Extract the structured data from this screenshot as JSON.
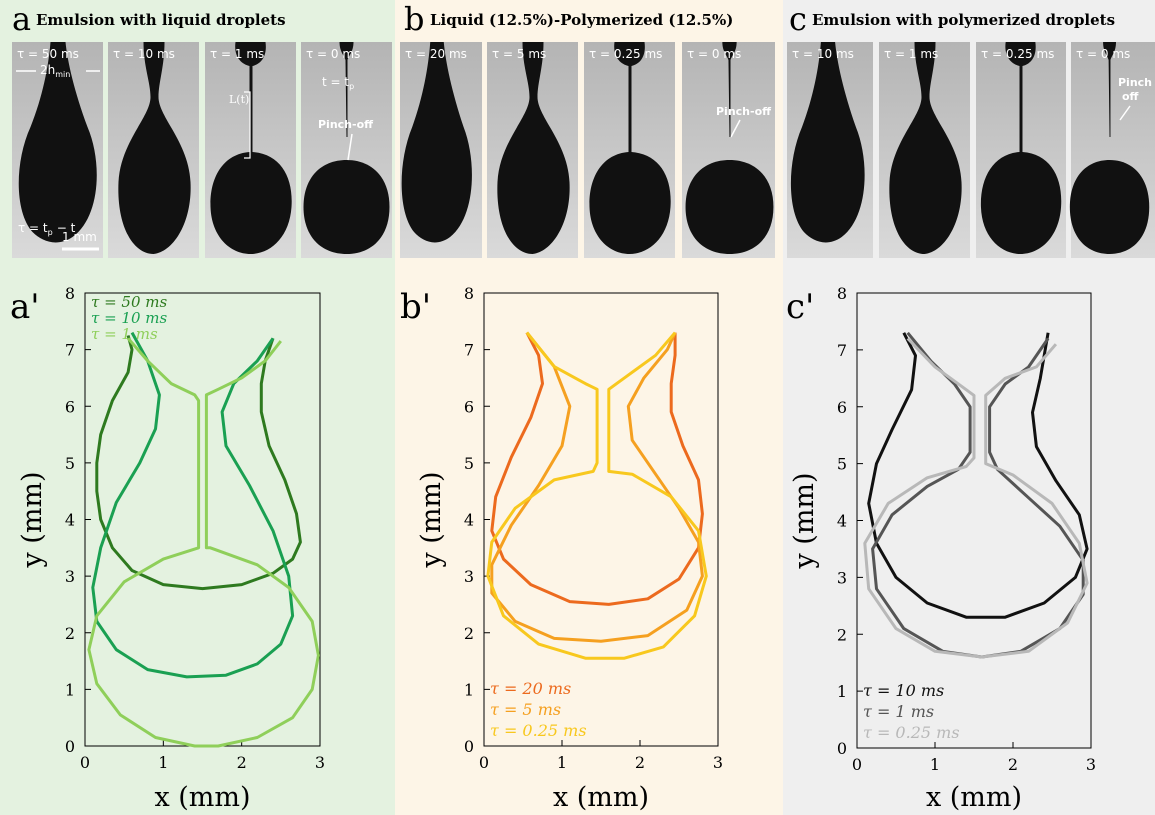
{
  "photos": [
    {
      "label": "a",
      "title": "Emulsion with liquid droplets",
      "frames": [
        "τ = 50 ms",
        "τ = 10 ms",
        "τ = 1 ms",
        "τ = 0 ms"
      ],
      "notes": [
        "2h",
        "min",
        "L(t)",
        "t = t",
        "p",
        "Pinch-off",
        "τ = t",
        "p",
        "− t",
        "1 mm"
      ]
    },
    {
      "label": "b",
      "title": "Liquid (12.5%)-Polymerized (12.5%)",
      "frames": [
        "τ = 20 ms",
        "τ = 5 ms",
        "τ = 0.25 ms",
        "τ = 0 ms"
      ],
      "notes": [
        "Pinch-off"
      ]
    },
    {
      "label": "c",
      "title": "Emulsion with polymerized droplets",
      "frames": [
        "τ = 10 ms",
        "τ = 1 ms",
        "τ = 0.25 ms",
        "τ = 0 ms"
      ],
      "notes": [
        "Pinch",
        "off"
      ]
    }
  ],
  "chart_data": [
    {
      "type": "line",
      "label": "a'",
      "xlabel": "x (mm)",
      "ylabel": "y (mm)",
      "xlim": [
        0,
        3
      ],
      "ylim": [
        0,
        8
      ],
      "xticks": [
        0,
        1,
        2,
        3
      ],
      "yticks": [
        0,
        1,
        2,
        3,
        4,
        5,
        6,
        7,
        8
      ],
      "legend": "upper left",
      "series": [
        {
          "name": "τ = 50 ms",
          "color": "#2e7a1f",
          "x": [
            0.55,
            0.6,
            0.55,
            0.35,
            0.2,
            0.15,
            0.15,
            0.2,
            0.35,
            0.6,
            1.0,
            1.5,
            2.0,
            2.4,
            2.65,
            2.75,
            2.7,
            2.55,
            2.35,
            2.25,
            2.25,
            2.3,
            2.4
          ],
          "values": [
            7.25,
            7.0,
            6.6,
            6.1,
            5.5,
            5.0,
            4.5,
            4.0,
            3.5,
            3.1,
            2.85,
            2.78,
            2.85,
            3.05,
            3.3,
            3.6,
            4.1,
            4.7,
            5.3,
            5.9,
            6.4,
            6.8,
            7.2
          ]
        },
        {
          "name": "τ = 10 ms",
          "color": "#1aa052",
          "x": [
            0.6,
            0.8,
            0.95,
            0.9,
            0.7,
            0.4,
            0.2,
            0.1,
            0.15,
            0.4,
            0.8,
            1.3,
            1.8,
            2.2,
            2.5,
            2.65,
            2.6,
            2.4,
            2.1,
            1.8,
            1.75,
            1.9,
            2.2,
            2.4
          ],
          "values": [
            7.3,
            6.8,
            6.2,
            5.6,
            5.0,
            4.3,
            3.5,
            2.8,
            2.2,
            1.7,
            1.35,
            1.22,
            1.25,
            1.45,
            1.8,
            2.3,
            3.0,
            3.8,
            4.6,
            5.3,
            5.9,
            6.4,
            6.8,
            7.2
          ]
        },
        {
          "name": "τ = 1 ms",
          "color": "#8fcf5a",
          "x": [
            0.55,
            0.8,
            1.1,
            1.4,
            1.45,
            1.45,
            1.0,
            0.5,
            0.15,
            0.05,
            0.15,
            0.45,
            0.9,
            1.4,
            1.7,
            2.2,
            2.65,
            2.9,
            2.98,
            2.9,
            2.6,
            2.2,
            1.6,
            1.55,
            1.55,
            1.7,
            2.0,
            2.3,
            2.5
          ],
          "values": [
            7.2,
            6.8,
            6.4,
            6.2,
            6.1,
            3.5,
            3.3,
            2.9,
            2.3,
            1.7,
            1.1,
            0.55,
            0.15,
            0.0,
            0.0,
            0.15,
            0.5,
            1.0,
            1.6,
            2.2,
            2.8,
            3.2,
            3.5,
            3.5,
            6.2,
            6.3,
            6.5,
            6.8,
            7.15
          ]
        }
      ]
    },
    {
      "type": "line",
      "label": "b'",
      "xlabel": "x (mm)",
      "ylabel": "y (mm)",
      "xlim": [
        0,
        3
      ],
      "ylim": [
        0,
        8
      ],
      "xticks": [
        0,
        1,
        2,
        3
      ],
      "yticks": [
        0,
        1,
        2,
        3,
        4,
        5,
        6,
        7,
        8
      ],
      "legend": "lower left",
      "series": [
        {
          "name": "τ = 20 ms",
          "color": "#ec6a1e",
          "x": [
            0.55,
            0.7,
            0.75,
            0.6,
            0.35,
            0.15,
            0.1,
            0.25,
            0.6,
            1.1,
            1.6,
            2.1,
            2.5,
            2.75,
            2.8,
            2.75,
            2.55,
            2.4,
            2.4,
            2.45,
            2.45
          ],
          "values": [
            7.3,
            6.9,
            6.4,
            5.8,
            5.1,
            4.4,
            3.8,
            3.3,
            2.85,
            2.55,
            2.5,
            2.6,
            2.95,
            3.5,
            4.1,
            4.7,
            5.3,
            5.9,
            6.4,
            6.9,
            7.3
          ]
        },
        {
          "name": "τ = 5 ms",
          "color": "#f5a020",
          "x": [
            0.55,
            0.9,
            1.1,
            1.0,
            0.7,
            0.35,
            0.1,
            0.1,
            0.4,
            0.9,
            1.5,
            2.1,
            2.6,
            2.8,
            2.75,
            2.5,
            2.2,
            1.9,
            1.85,
            2.05,
            2.35,
            2.45
          ],
          "values": [
            7.3,
            6.7,
            6.0,
            5.3,
            4.6,
            3.9,
            3.2,
            2.7,
            2.2,
            1.9,
            1.85,
            1.95,
            2.4,
            3.0,
            3.6,
            4.2,
            4.8,
            5.4,
            6.0,
            6.5,
            7.0,
            7.3
          ]
        },
        {
          "name": "τ = 0.25 ms",
          "color": "#f8c81e",
          "x": [
            0.55,
            0.9,
            1.3,
            1.45,
            1.45,
            1.4,
            0.9,
            0.4,
            0.1,
            0.05,
            0.25,
            0.7,
            1.3,
            1.8,
            2.3,
            2.7,
            2.85,
            2.75,
            2.4,
            1.9,
            1.6,
            1.6,
            1.8,
            2.2,
            2.45
          ],
          "values": [
            7.3,
            6.7,
            6.4,
            6.3,
            5.0,
            4.85,
            4.7,
            4.2,
            3.6,
            3.0,
            2.3,
            1.8,
            1.55,
            1.55,
            1.75,
            2.3,
            3.0,
            3.8,
            4.4,
            4.8,
            4.85,
            6.3,
            6.5,
            6.9,
            7.3
          ]
        }
      ]
    },
    {
      "type": "line",
      "label": "c'",
      "xlabel": "x (mm)",
      "ylabel": "y (mm)",
      "xlim": [
        0,
        3
      ],
      "ylim": [
        0,
        8
      ],
      "xticks": [
        0,
        1,
        2,
        3
      ],
      "yticks": [
        0,
        1,
        2,
        3,
        4,
        5,
        6,
        7,
        8
      ],
      "legend": "lower left",
      "series": [
        {
          "name": "τ = 10 ms",
          "color": "#111111",
          "x": [
            0.6,
            0.75,
            0.7,
            0.45,
            0.25,
            0.15,
            0.25,
            0.5,
            0.9,
            1.4,
            1.9,
            2.4,
            2.8,
            2.95,
            2.85,
            2.55,
            2.3,
            2.25,
            2.35,
            2.45
          ],
          "values": [
            7.3,
            6.9,
            6.3,
            5.6,
            5.0,
            4.3,
            3.6,
            3.0,
            2.55,
            2.3,
            2.3,
            2.55,
            3.0,
            3.5,
            4.1,
            4.7,
            5.3,
            5.9,
            6.5,
            7.3
          ]
        },
        {
          "name": "τ = 1 ms",
          "color": "#555555",
          "x": [
            0.65,
            0.95,
            1.25,
            1.45,
            1.45,
            1.3,
            0.9,
            0.45,
            0.2,
            0.25,
            0.6,
            1.1,
            1.6,
            2.1,
            2.6,
            2.9,
            2.9,
            2.6,
            2.2,
            1.8,
            1.7,
            1.7,
            1.9,
            2.2,
            2.45
          ],
          "values": [
            7.3,
            6.8,
            6.4,
            6.0,
            5.2,
            4.9,
            4.6,
            4.1,
            3.5,
            2.8,
            2.1,
            1.7,
            1.6,
            1.7,
            2.1,
            2.7,
            3.3,
            3.9,
            4.4,
            4.9,
            5.2,
            6.0,
            6.4,
            6.7,
            7.2
          ]
        },
        {
          "name": "τ = 0.25 ms",
          "color": "#b8b8b8",
          "x": [
            0.65,
            1.0,
            1.4,
            1.5,
            1.5,
            1.4,
            0.9,
            0.4,
            0.1,
            0.15,
            0.5,
            1.0,
            1.6,
            2.2,
            2.7,
            2.95,
            2.85,
            2.5,
            2.0,
            1.65,
            1.65,
            1.9,
            2.3,
            2.55
          ],
          "values": [
            7.2,
            6.7,
            6.3,
            6.2,
            5.1,
            4.95,
            4.75,
            4.3,
            3.6,
            2.8,
            2.1,
            1.7,
            1.6,
            1.7,
            2.2,
            2.9,
            3.6,
            4.3,
            4.8,
            5.0,
            6.2,
            6.5,
            6.7,
            7.1
          ]
        }
      ]
    }
  ]
}
